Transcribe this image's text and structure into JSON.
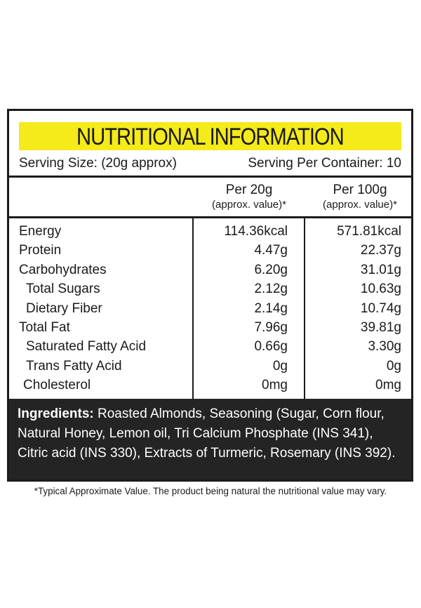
{
  "title": "NUTRITIONAL INFORMATION",
  "serving": {
    "size": "Serving Size: (20g approx)",
    "per_container": "Serving Per Container: 10"
  },
  "columns": [
    {
      "main": "Per 20g",
      "sub": "(approx. value)*"
    },
    {
      "main": "Per 100g",
      "sub": "(approx. value)*"
    }
  ],
  "nutrients": [
    {
      "name": "Energy",
      "per_20g": "114.36kcal",
      "per_100g": "571.81kcal"
    },
    {
      "name": "Protein",
      "per_20g": "4.47g",
      "per_100g": "22.37g"
    },
    {
      "name": "Carbohydrates",
      "per_20g": "6.20g",
      "per_100g": "31.01g"
    },
    {
      "name": "Total Sugars",
      "per_20g": "2.12g",
      "per_100g": "10.63g"
    },
    {
      "name": "Dietary Fiber",
      "per_20g": "2.14g",
      "per_100g": "10.74g"
    },
    {
      "name": "Total Fat",
      "per_20g": "7.96g",
      "per_100g": "39.81g"
    },
    {
      "name": "Saturated Fatty Acid",
      "per_20g": "0.66g",
      "per_100g": "3.30g"
    },
    {
      "name": "Trans Fatty Acid",
      "per_20g": "0g",
      "per_100g": "0g"
    },
    {
      "name": "Cholesterol",
      "per_20g": "0mg",
      "per_100g": "0mg"
    }
  ],
  "ingredients": {
    "label": "Ingredients:",
    "text": " Roasted Almonds, Seasoning (Sugar, Corn flour, Natural Honey, Lemon oil, Tri Calcium Phosphate (INS 341), Citric acid (INS 330), Extracts of Turmeric, Rosemary (INS 392)."
  },
  "footnote": "*Typical Approximate Value. The product being natural the nutritional value may vary.",
  "colors": {
    "title_bg": "#f5ea1a",
    "border": "#1b1b1b",
    "ingredients_bg": "#242424"
  }
}
